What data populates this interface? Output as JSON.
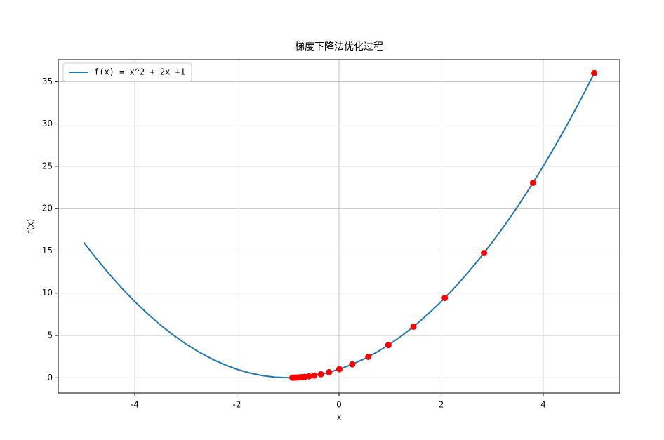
{
  "chart_data": {
    "type": "line",
    "title": "梯度下降法优化过程",
    "x_label": "x",
    "y_label": "f(x)",
    "xlim": [
      -5.5,
      5.5
    ],
    "xticks": [
      -4,
      -2,
      0,
      2,
      4
    ],
    "ylim": [
      -1.8,
      37.6
    ],
    "yticks": [
      0,
      5,
      10,
      15,
      20,
      25,
      30,
      35
    ],
    "grid": true,
    "legend": "upper left",
    "series": [
      {
        "name": "f(x) = x^2 + 2x +1",
        "color": "#1f77b4",
        "x": [
          -5,
          -4.75,
          -4.5,
          -4.25,
          -4,
          -3.75,
          -3.5,
          -3.25,
          -3,
          -2.75,
          -2.5,
          -2.25,
          -2,
          -1.75,
          -1.5,
          -1.25,
          -1,
          -0.75,
          -0.5,
          -0.25,
          0,
          0.25,
          0.5,
          0.75,
          1,
          1.25,
          1.5,
          1.75,
          2,
          2.25,
          2.5,
          2.75,
          3,
          3.25,
          3.5,
          3.75,
          4,
          4.25,
          4.5,
          4.75,
          5
        ],
        "values": [
          16,
          14.0625,
          12.25,
          10.5625,
          9,
          7.5625,
          6.25,
          5.0625,
          4,
          3.0625,
          2.25,
          1.5625,
          1,
          0.5625,
          0.25,
          0.0625,
          0,
          0.0625,
          0.25,
          0.5625,
          1,
          1.5625,
          2.25,
          3.0625,
          4,
          5.0625,
          6.25,
          7.5625,
          9,
          10.5625,
          12.25,
          14.0625,
          16,
          18.0625,
          20.25,
          22.5625,
          25,
          27.5625,
          30.25,
          33.0625,
          36
        ]
      }
    ],
    "points": {
      "color": "#ff0000",
      "x": [
        5,
        3.8,
        2.84,
        2.072,
        1.4576,
        0.96608,
        0.572864,
        0.258291,
        0.006633,
        -0.194694,
        -0.355755,
        -0.484604,
        -0.587683,
        -0.670147,
        -0.736117,
        -0.788894,
        -0.831115,
        -0.864892,
        -0.891914,
        -0.913531
      ],
      "values": [
        36,
        23.04,
        14.7456,
        9.437,
        6.0398,
        3.8655,
        2.4739,
        1.5833,
        1.0133,
        0.6485,
        0.4151,
        0.2656,
        0.17,
        0.1088,
        0.0696,
        0.0446,
        0.0285,
        0.0183,
        0.0117,
        0.0075
      ]
    }
  }
}
